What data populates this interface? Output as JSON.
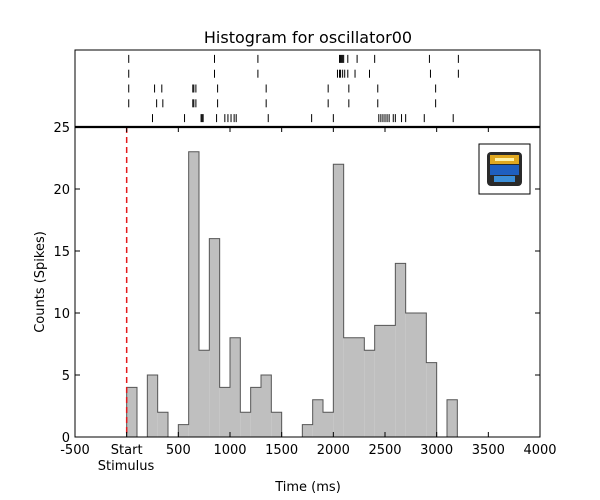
{
  "chart_data": {
    "type": "bar",
    "title": "Histogram for oscillator00",
    "xlabel": "Time (ms)",
    "ylabel": "Counts (Spikes)",
    "xlim": [
      -500,
      4000
    ],
    "ylim": [
      0,
      25
    ],
    "bin_width": 100,
    "x_ticks": [
      -500,
      0,
      500,
      1000,
      1500,
      2000,
      2500,
      3000,
      3500,
      4000
    ],
    "x_tick_labels": [
      "-500",
      "Start",
      "500",
      "1000",
      "1500",
      "2000",
      "2500",
      "3000",
      "3500",
      "4000"
    ],
    "y_ticks": [
      0,
      5,
      10,
      15,
      20,
      25
    ],
    "y_tick_labels": [
      "0",
      "5",
      "10",
      "15",
      "20",
      "25"
    ],
    "stimulus_label": "Stimulus",
    "stimulus_x": 0,
    "stimulus_line_color": "#e31a1c",
    "bar_fill_color": "#bfbfbf",
    "bar_edge_color": "#555555",
    "bins": [
      {
        "x": 0,
        "count": 4
      },
      {
        "x": 100,
        "count": 0
      },
      {
        "x": 200,
        "count": 5
      },
      {
        "x": 300,
        "count": 2
      },
      {
        "x": 400,
        "count": 0
      },
      {
        "x": 500,
        "count": 1
      },
      {
        "x": 600,
        "count": 23
      },
      {
        "x": 700,
        "count": 7
      },
      {
        "x": 800,
        "count": 16
      },
      {
        "x": 900,
        "count": 4
      },
      {
        "x": 1000,
        "count": 8
      },
      {
        "x": 1100,
        "count": 2
      },
      {
        "x": 1200,
        "count": 4
      },
      {
        "x": 1300,
        "count": 5
      },
      {
        "x": 1400,
        "count": 2
      },
      {
        "x": 1500,
        "count": 0
      },
      {
        "x": 1600,
        "count": 0
      },
      {
        "x": 1700,
        "count": 1
      },
      {
        "x": 1800,
        "count": 3
      },
      {
        "x": 1900,
        "count": 2
      },
      {
        "x": 2000,
        "count": 22
      },
      {
        "x": 2100,
        "count": 8
      },
      {
        "x": 2200,
        "count": 8
      },
      {
        "x": 2300,
        "count": 7
      },
      {
        "x": 2400,
        "count": 9
      },
      {
        "x": 2500,
        "count": 9
      },
      {
        "x": 2600,
        "count": 14
      },
      {
        "x": 2700,
        "count": 10
      },
      {
        "x": 2800,
        "count": 10
      },
      {
        "x": 2900,
        "count": 6
      },
      {
        "x": 3000,
        "count": 0
      },
      {
        "x": 3100,
        "count": 3
      }
    ],
    "raster_trials": [
      [
        20,
        850,
        1270,
        2060,
        2070,
        2080,
        2090,
        2100,
        2140,
        2230,
        2400,
        2930,
        3210
      ],
      [
        20,
        850,
        1270,
        2040,
        2060,
        2070,
        2090,
        2110,
        2140,
        2210,
        2350,
        2940,
        3210
      ],
      [
        20,
        270,
        340,
        640,
        650,
        670,
        880,
        1350,
        1950,
        2150,
        2430,
        2990
      ],
      [
        20,
        290,
        350,
        640,
        650,
        670,
        880,
        1350,
        1950,
        2150,
        2430,
        2990
      ],
      [
        250,
        560,
        720,
        730,
        740,
        870,
        950,
        980,
        1010,
        1040,
        1060,
        1370,
        1790,
        2000,
        2440,
        2460,
        2480,
        2500,
        2520,
        2540,
        2580,
        2600,
        2660,
        2700,
        2880,
        3160
      ]
    ],
    "legend": "none",
    "grid": false
  }
}
